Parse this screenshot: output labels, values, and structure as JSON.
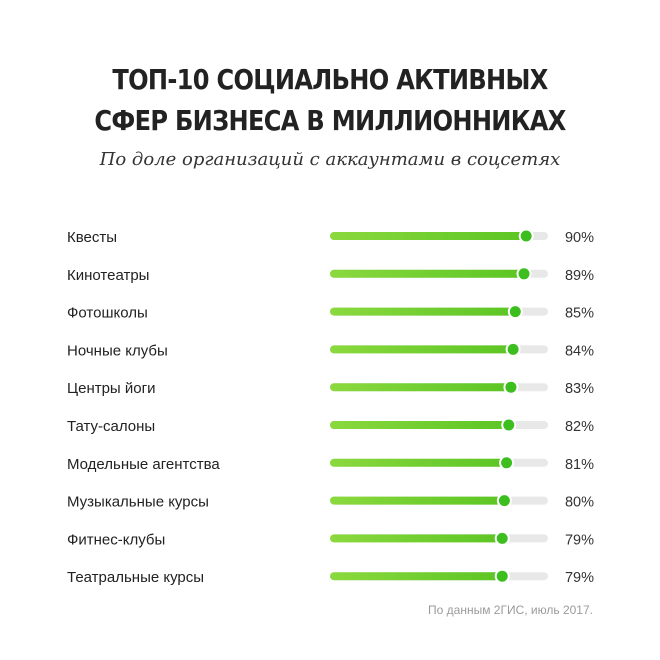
{
  "title_line1": "ТОП-10 СОЦИАЛЬНО АКТИВНЫХ",
  "title_line2": "СФЕР БИЗНЕСА В МИЛЛИОННИКАХ",
  "subtitle": "По доле организаций с аккаунтами в соцсетях",
  "source": "По данным 2ГИС, июль 2017.",
  "colors": {
    "bar_green": "#5bc524",
    "bar_green_light": "#8bd93e",
    "track": "#e8e8e8",
    "dot": "#3cbf1e"
  },
  "chart_data": {
    "type": "bar",
    "orientation": "horizontal",
    "categories": [
      "Квесты",
      "Кинотеатры",
      "Фотошколы",
      "Ночные клубы",
      "Центры йоги",
      "Тату-салоны",
      "Модельные агентства",
      "Музыкальные курсы",
      "Фитнес-клубы",
      "Театральные курсы"
    ],
    "values": [
      90,
      89,
      85,
      84,
      83,
      82,
      81,
      80,
      79,
      79
    ],
    "value_labels": [
      "90%",
      "89%",
      "85%",
      "84%",
      "83%",
      "82%",
      "81%",
      "80%",
      "79%",
      "79%"
    ],
    "xlim": [
      0,
      100
    ],
    "grid": false,
    "legend": false
  }
}
